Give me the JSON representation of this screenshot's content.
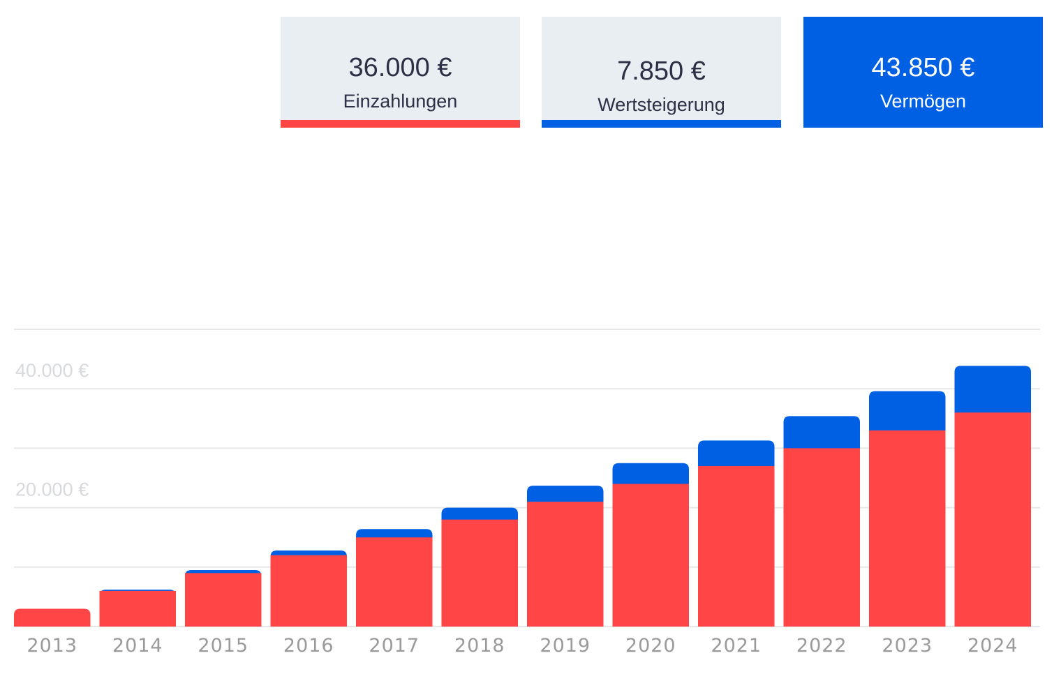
{
  "colors": {
    "deposits": "#ff4545",
    "growth": "#0060e4",
    "wealth": "#0060e4",
    "card_bg": "#e9eef3",
    "grid": "#e7e7e7"
  },
  "summary": {
    "deposits": {
      "value": "36.000 €",
      "label": "Einzahlungen"
    },
    "growth": {
      "value": "7.850 €",
      "label": "Wertsteigerung"
    },
    "wealth": {
      "value": "43.850 €",
      "label": "Vermögen"
    }
  },
  "chart_data": {
    "type": "bar",
    "stacked": true,
    "title": "",
    "xlabel": "",
    "ylabel": "",
    "categories": [
      "2013",
      "2014",
      "2015",
      "2016",
      "2017",
      "2018",
      "2019",
      "2020",
      "2021",
      "2022",
      "2023",
      "2024"
    ],
    "series": [
      {
        "key": "deposits",
        "values": [
          3000,
          6000,
          9000,
          12000,
          15000,
          18000,
          21000,
          24000,
          27000,
          30000,
          33000,
          36000
        ]
      },
      {
        "key": "growth",
        "values": [
          0,
          200,
          500,
          800,
          1400,
          2000,
          2700,
          3500,
          4300,
          5400,
          6600,
          7850
        ]
      }
    ],
    "ylim": [
      0,
      50000
    ],
    "yticks": [
      0,
      10000,
      20000,
      30000,
      40000,
      50000
    ],
    "ytick_labels": [
      {
        "value": 20000,
        "label": "20.000 €"
      },
      {
        "value": 40000,
        "label": "40.000 €"
      }
    ],
    "grid": true,
    "legend": "none"
  }
}
